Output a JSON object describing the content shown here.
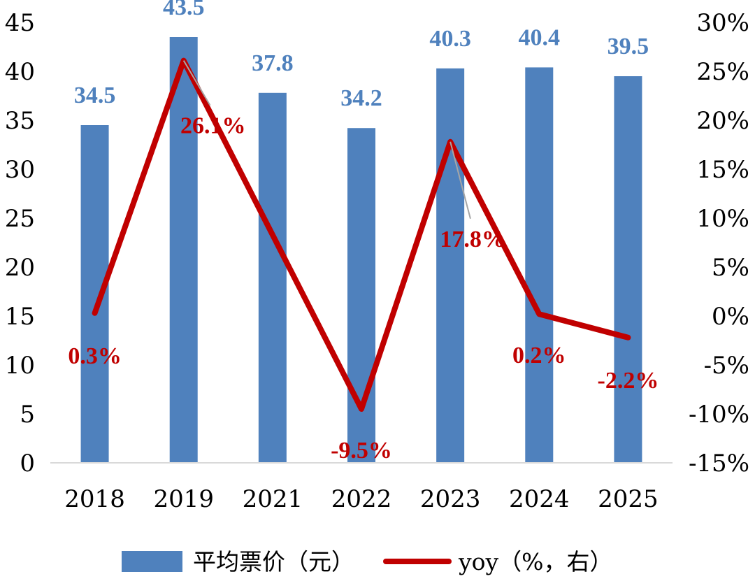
{
  "chart_data": {
    "type": "bar",
    "categories": [
      "2018",
      "2019",
      "2021",
      "2022",
      "2023",
      "2024",
      "2025"
    ],
    "series": [
      {
        "name": "平均票价（元）",
        "type": "bar",
        "axis": "left",
        "values": [
          34.5,
          43.5,
          37.8,
          34.2,
          40.3,
          40.4,
          39.5
        ],
        "labels": [
          "34.5",
          "43.5",
          "37.8",
          "34.2",
          "40.3",
          "40.4",
          "39.5"
        ]
      },
      {
        "name": "yoy（%，右）",
        "type": "line",
        "axis": "right",
        "values": [
          0.3,
          26.1,
          null,
          -9.5,
          17.8,
          0.2,
          -2.2
        ],
        "labels": [
          "0.3%",
          "26.1%",
          "",
          "-9.5%",
          "17.8%",
          "0.2%",
          "-2.2%"
        ]
      }
    ],
    "left_axis": {
      "ylim": [
        0,
        45
      ],
      "ticks": [
        "0",
        "5",
        "10",
        "15",
        "20",
        "25",
        "30",
        "35",
        "40",
        "45"
      ]
    },
    "right_axis": {
      "ylim": [
        -15,
        30
      ],
      "ticks": [
        "-15%",
        "-10%",
        "-5%",
        "0%",
        "5%",
        "10%",
        "15%",
        "20%",
        "25%",
        "30%"
      ]
    },
    "legend_position": "bottom",
    "grid": false
  },
  "colors": {
    "bar": "#4f81bd",
    "bar_label": "#4f81bd",
    "line": "#c00000",
    "line_label": "#c00000",
    "leader": "#a6a6a6",
    "axis": "#d9d9d9"
  }
}
